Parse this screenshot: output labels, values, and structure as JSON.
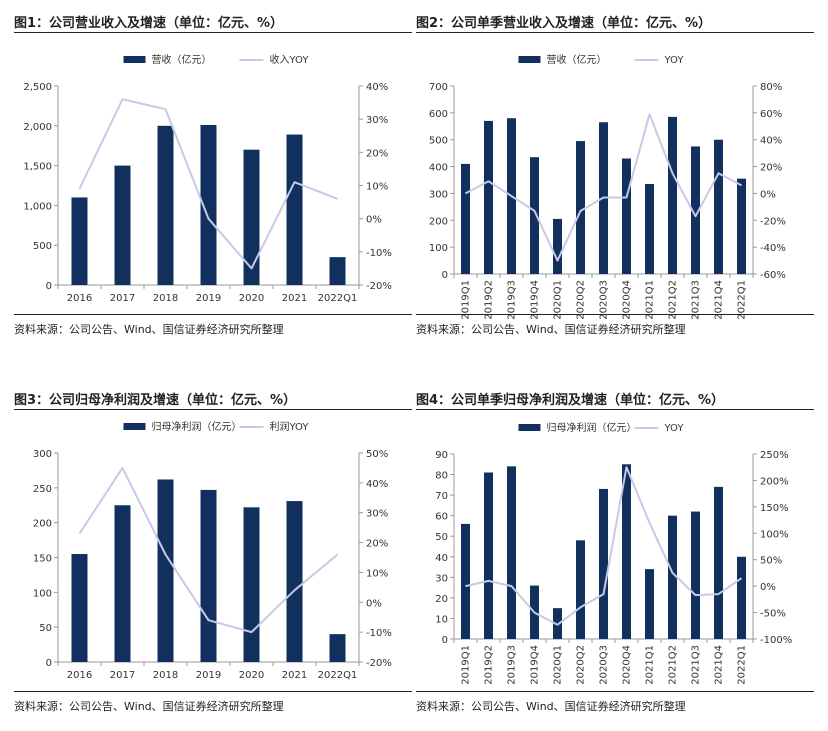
{
  "colors": {
    "bar": "#12305e",
    "line": "#c9c8e8",
    "axis": "#999999",
    "text": "#333333"
  },
  "charts": [
    {
      "title": "图1：公司营业收入及增速（单位：亿元、%）",
      "source": "资料来源：公司公告、Wind、国信证券经济研究所整理",
      "chart_data": {
        "type": "bar",
        "categories": [
          "2016",
          "2017",
          "2018",
          "2019",
          "2020",
          "2021",
          "2022Q1"
        ],
        "series": [
          {
            "name": "营收（亿元）",
            "type": "bar",
            "axis": "left",
            "values": [
              1100,
              1500,
              2000,
              2010,
              1700,
              1890,
              350
            ]
          },
          {
            "name": "收入YOY",
            "type": "line",
            "axis": "right",
            "values": [
              9,
              36,
              33,
              0,
              -15,
              11,
              6
            ]
          }
        ],
        "ylim": [
          0,
          2500
        ],
        "yticks": [
          0,
          500,
          1000,
          1500,
          2000,
          2500
        ],
        "y2lim": [
          -20,
          40
        ],
        "y2ticks": [
          -20,
          -10,
          0,
          10,
          20,
          30,
          40
        ],
        "ytick_labels": [
          "0",
          "500",
          "1,000",
          "1,500",
          "2,000",
          "2,500"
        ],
        "y2tick_labels": [
          "-20%",
          "-10%",
          "0%",
          "10%",
          "20%",
          "30%",
          "40%"
        ],
        "legend": "top"
      }
    },
    {
      "title": "图2：公司单季营业收入及增速（单位：亿元、%）",
      "source": "资料来源：公司公告、Wind、国信证券经济研究所整理",
      "chart_data": {
        "type": "bar",
        "categories": [
          "2019Q1",
          "2019Q2",
          "2019Q3",
          "2019Q4",
          "2020Q1",
          "2020Q2",
          "2020Q3",
          "2020Q4",
          "2021Q1",
          "2021Q2",
          "2021Q3",
          "2021Q4",
          "2022Q1"
        ],
        "series": [
          {
            "name": "营收（亿元）",
            "type": "bar",
            "axis": "left",
            "values": [
              410,
              570,
              580,
              435,
              205,
              495,
              565,
              430,
              335,
              585,
              475,
              500,
              355
            ]
          },
          {
            "name": "YOY",
            "type": "line",
            "axis": "right",
            "values": [
              0,
              9,
              -2,
              -13,
              -50,
              -13,
              -3,
              -3,
              59,
              15,
              -17,
              15,
              6
            ]
          }
        ],
        "ylim": [
          0,
          700
        ],
        "yticks": [
          0,
          100,
          200,
          300,
          400,
          500,
          600,
          700
        ],
        "y2lim": [
          -60,
          80
        ],
        "y2ticks": [
          -60,
          -40,
          -20,
          0,
          20,
          40,
          60,
          80
        ],
        "ytick_labels": [
          "0",
          "100",
          "200",
          "300",
          "400",
          "500",
          "600",
          "700"
        ],
        "y2tick_labels": [
          "-60%",
          "-40%",
          "-20%",
          "0%",
          "20%",
          "40%",
          "60%",
          "80%"
        ],
        "legend": "top"
      }
    },
    {
      "title": "图3：公司归母净利润及增速（单位：亿元、%）",
      "source": "资料来源：公司公告、Wind、国信证券经济研究所整理",
      "chart_data": {
        "type": "bar",
        "categories": [
          "2016",
          "2017",
          "2018",
          "2019",
          "2020",
          "2021",
          "2022Q1"
        ],
        "series": [
          {
            "name": "归母净利润（亿元）",
            "type": "bar",
            "axis": "left",
            "values": [
              155,
              225,
              262,
              247,
              222,
              231,
              40
            ]
          },
          {
            "name": "利润YOY",
            "type": "line",
            "axis": "right",
            "values": [
              23,
              45,
              16,
              -6,
              -10,
              4,
              16
            ]
          }
        ],
        "ylim": [
          0,
          300
        ],
        "yticks": [
          0,
          50,
          100,
          150,
          200,
          250,
          300
        ],
        "y2lim": [
          -20,
          50
        ],
        "y2ticks": [
          -20,
          -10,
          0,
          10,
          20,
          30,
          40,
          50
        ],
        "ytick_labels": [
          "0",
          "50",
          "100",
          "150",
          "200",
          "250",
          "300"
        ],
        "y2tick_labels": [
          "-20%",
          "-10%",
          "0%",
          "10%",
          "20%",
          "30%",
          "40%",
          "50%"
        ],
        "legend": "top"
      }
    },
    {
      "title": "图4：公司单季归母净利润及增速（单位：亿元、%）",
      "source": "资料来源：公司公告、Wind、国信证券经济研究所整理",
      "chart_data": {
        "type": "bar",
        "categories": [
          "2019Q1",
          "2019Q2",
          "2019Q3",
          "2019Q4",
          "2020Q1",
          "2020Q2",
          "2020Q3",
          "2020Q4",
          "2021Q1",
          "2021Q2",
          "2021Q3",
          "2021Q4",
          "2022Q1"
        ],
        "series": [
          {
            "name": "归母净利润（亿元）",
            "type": "bar",
            "axis": "left",
            "values": [
              56,
              81,
              84,
              26,
              15,
              48,
              73,
              85,
              34,
              60,
              62,
              74,
              40
            ]
          },
          {
            "name": "YOY",
            "type": "line",
            "axis": "right",
            "values": [
              0,
              10,
              0,
              -50,
              -73,
              -40,
              -15,
              225,
              120,
              25,
              -17,
              -15,
              15
            ]
          }
        ],
        "ylim": [
          0,
          90
        ],
        "yticks": [
          0,
          10,
          20,
          30,
          40,
          50,
          60,
          70,
          80,
          90
        ],
        "y2lim": [
          -100,
          250
        ],
        "y2ticks": [
          -100,
          -50,
          0,
          50,
          100,
          150,
          200,
          250
        ],
        "ytick_labels": [
          "0",
          "10",
          "20",
          "30",
          "40",
          "50",
          "60",
          "70",
          "80",
          "90"
        ],
        "y2tick_labels": [
          "-100%",
          "-50%",
          "0%",
          "50%",
          "100%",
          "150%",
          "200%",
          "250%"
        ],
        "legend": "top"
      }
    }
  ]
}
